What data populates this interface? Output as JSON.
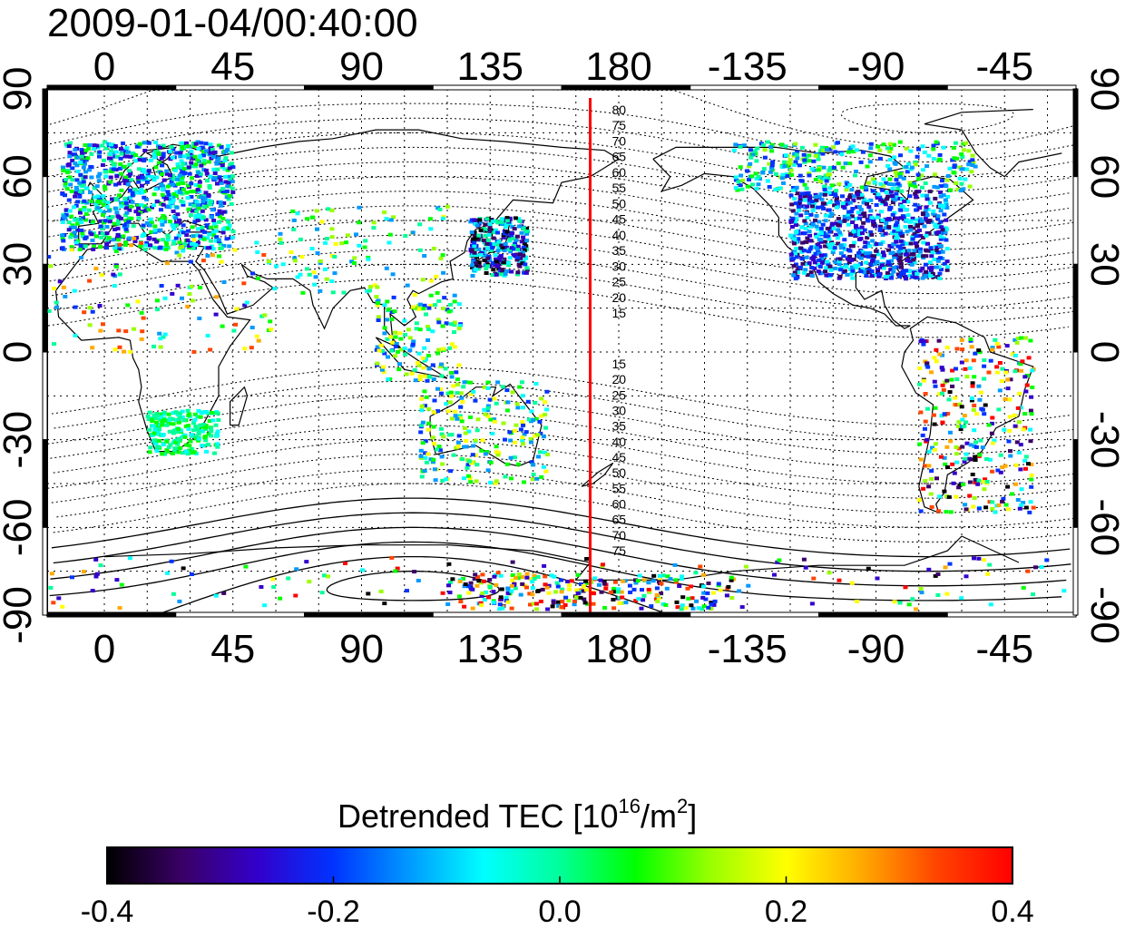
{
  "title": "2009-01-04/00:40:00",
  "map": {
    "lon_ticks_top": [
      "0",
      "45",
      "90",
      "135",
      "180",
      "-135",
      "-90",
      "-45"
    ],
    "lon_ticks_bottom": [
      "0",
      "45",
      "90",
      "135",
      "180",
      "-135",
      "-90",
      "-45"
    ],
    "lat_ticks_left": [
      "90",
      "60",
      "30",
      "0",
      "-30",
      "-60",
      "-90"
    ],
    "lat_ticks_right": [
      "90",
      "60",
      "30",
      "0",
      "-30",
      "-60",
      "-90"
    ],
    "lon_range": [
      -20,
      340
    ],
    "lat_range": [
      -90,
      90
    ],
    "marker_longitude": 170,
    "marker_color": "#ff0000",
    "contour_labels_north": [
      "80",
      "75",
      "70",
      "65",
      "60",
      "55",
      "50",
      "45",
      "40",
      "35",
      "30",
      "25",
      "20",
      "15"
    ],
    "contour_labels_south": [
      "15",
      "20",
      "25",
      "30",
      "35",
      "40",
      "45",
      "50",
      "55",
      "60",
      "65",
      "70",
      "75"
    ]
  },
  "colorbar": {
    "label": "Detrended TEC  [10",
    "label_sup": "16",
    "label_unit": "/m",
    "label_sup2": "2",
    "label_close": "]",
    "ticks": [
      "-0.4",
      "-0.2",
      "0.0",
      "0.2",
      "0.4"
    ],
    "range": [
      -0.4,
      0.4
    ],
    "colors": [
      "#000000",
      "#3a0066",
      "#3300cc",
      "#0033ff",
      "#0099ff",
      "#00ffff",
      "#00ff99",
      "#00ff00",
      "#99ff00",
      "#ffff00",
      "#ffaa00",
      "#ff4400",
      "#ff0000"
    ]
  }
}
